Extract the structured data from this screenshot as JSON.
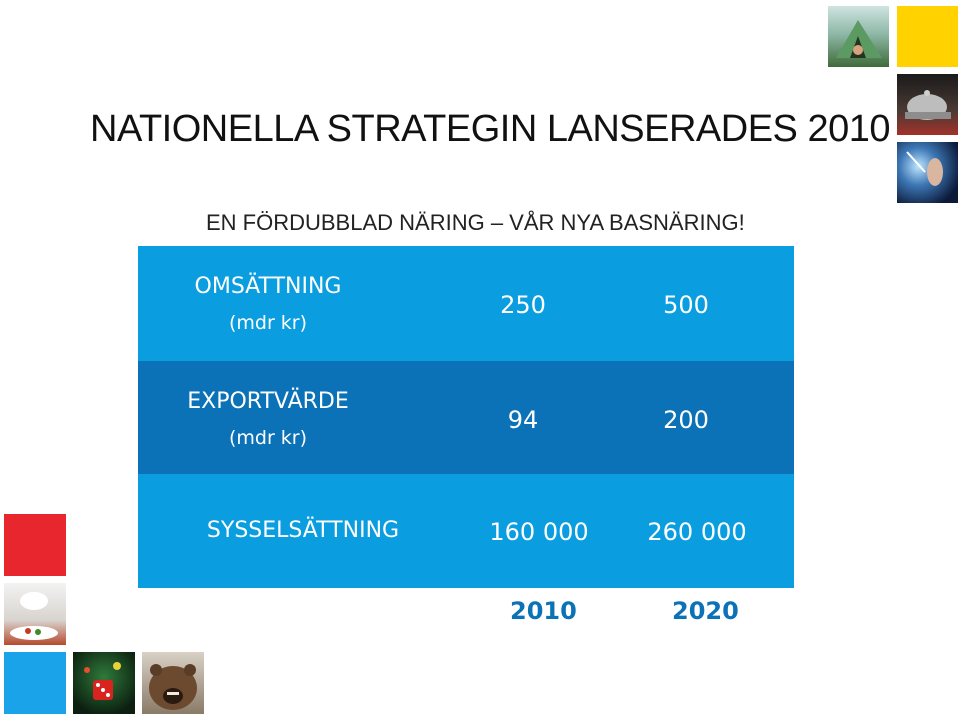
{
  "title": "NATIONELLA STRATEGIN LANSERADES 2010",
  "subtitle": "EN FÖRDUBBLAD NÄRING – VÅR NYA BASNÄRING!",
  "rows": [
    {
      "label": "OMSÄTTNING",
      "unit": "(mdr kr)",
      "v2010": "250",
      "v2020": "500"
    },
    {
      "label": "EXPORTVÄRDE",
      "unit": "(mdr kr)",
      "v2010": "94",
      "v2020": "200"
    },
    {
      "label": "SYSSELSÄTTNING",
      "v2010": "160 000",
      "v2020": "260 000"
    }
  ],
  "years": [
    "2010",
    "2020"
  ],
  "colors": {
    "row_light": "#0a9ee0",
    "row_dark": "#0b72b8",
    "yellow": "#ffd200",
    "red": "#e8262e",
    "blue_square": "#1aa3e8"
  }
}
